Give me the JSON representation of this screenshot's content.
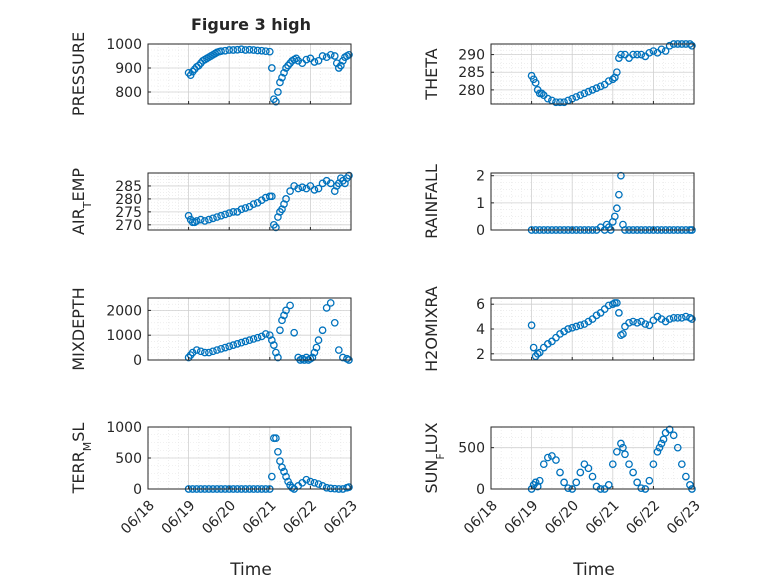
{
  "figure": {
    "title": "Figure 3 high",
    "marker_color": "#0072BD",
    "x_axis": {
      "label": "Time",
      "tick_labels": [
        "06/18",
        "06/19",
        "06/20",
        "06/21",
        "06/22",
        "06/23"
      ],
      "tick_values": [
        0,
        1,
        2,
        3,
        4,
        5
      ],
      "xlim": [
        0,
        5
      ]
    }
  },
  "chart_data": [
    {
      "type": "scatter",
      "ylabel": "PRESSURE",
      "ylim": [
        750,
        1000
      ],
      "yticks": [
        800,
        900,
        1000
      ],
      "grid": true,
      "series": [
        {
          "x": [
            1.0,
            1.05,
            1.1,
            1.15,
            1.2,
            1.25,
            1.3,
            1.35,
            1.4,
            1.45,
            1.5,
            1.55,
            1.6,
            1.65,
            1.7,
            1.75,
            1.8,
            1.9,
            2.0,
            2.1,
            2.2,
            2.3,
            2.4,
            2.5,
            2.6,
            2.7,
            2.8,
            2.9,
            3.0,
            3.05,
            3.1,
            3.15,
            3.2,
            3.25,
            3.3,
            3.35,
            3.4,
            3.45,
            3.5,
            3.55,
            3.6,
            3.65,
            3.7,
            3.8,
            3.9,
            4.0,
            4.1,
            4.2,
            4.3,
            4.4,
            4.5,
            4.6,
            4.65,
            4.7,
            4.75,
            4.8,
            4.85,
            4.9,
            4.95
          ],
          "y": [
            880,
            870,
            885,
            895,
            905,
            910,
            920,
            930,
            935,
            940,
            945,
            950,
            955,
            960,
            965,
            968,
            970,
            972,
            975,
            975,
            976,
            978,
            975,
            976,
            975,
            973,
            972,
            970,
            968,
            900,
            770,
            760,
            800,
            840,
            860,
            880,
            900,
            910,
            920,
            930,
            935,
            940,
            930,
            920,
            935,
            940,
            925,
            930,
            950,
            945,
            955,
            950,
            920,
            900,
            910,
            930,
            945,
            950,
            955
          ]
        }
      ]
    },
    {
      "type": "scatter",
      "ylabel": "THETA",
      "ylim": [
        276,
        293
      ],
      "yticks": [
        280,
        285,
        290
      ],
      "grid": true,
      "series": [
        {
          "x": [
            1.0,
            1.05,
            1.1,
            1.15,
            1.2,
            1.25,
            1.3,
            1.4,
            1.5,
            1.6,
            1.7,
            1.8,
            1.9,
            2.0,
            2.1,
            2.2,
            2.3,
            2.4,
            2.5,
            2.6,
            2.7,
            2.8,
            2.9,
            3.0,
            3.05,
            3.1,
            3.15,
            3.2,
            3.3,
            3.4,
            3.5,
            3.6,
            3.7,
            3.8,
            3.9,
            4.0,
            4.1,
            4.2,
            4.3,
            4.4,
            4.5,
            4.6,
            4.7,
            4.8,
            4.9,
            4.95
          ],
          "y": [
            284,
            283,
            282,
            280,
            279,
            279,
            278.5,
            277.5,
            277,
            276.5,
            276.5,
            276.5,
            277,
            277.5,
            278,
            278.5,
            279,
            279.5,
            280,
            280.5,
            281,
            281.5,
            282.5,
            283,
            283.5,
            285,
            289,
            290,
            290,
            289,
            290,
            290,
            290,
            289.5,
            290.5,
            291,
            290.5,
            291.5,
            291,
            292.5,
            293,
            293,
            293,
            293,
            293,
            292.5
          ]
        }
      ]
    },
    {
      "type": "scatter",
      "ylabel": "AIR_TEMP",
      "ylim": [
        268,
        290
      ],
      "yticks": [
        270,
        275,
        280,
        285
      ],
      "grid": true,
      "series": [
        {
          "x": [
            1.0,
            1.05,
            1.1,
            1.15,
            1.2,
            1.3,
            1.4,
            1.5,
            1.6,
            1.7,
            1.8,
            1.9,
            2.0,
            2.1,
            2.2,
            2.3,
            2.4,
            2.5,
            2.6,
            2.7,
            2.8,
            2.9,
            3.0,
            3.05,
            3.1,
            3.15,
            3.2,
            3.25,
            3.3,
            3.35,
            3.4,
            3.5,
            3.6,
            3.7,
            3.8,
            3.9,
            4.0,
            4.1,
            4.2,
            4.3,
            4.4,
            4.5,
            4.6,
            4.65,
            4.7,
            4.75,
            4.8,
            4.85,
            4.9,
            4.95
          ],
          "y": [
            273.5,
            272,
            271,
            271,
            271.5,
            272,
            271.5,
            272,
            272.5,
            273,
            273.5,
            274,
            274.5,
            275,
            275,
            276,
            276.5,
            277,
            278,
            278.5,
            279.5,
            280.5,
            281,
            281,
            270,
            269,
            273,
            275,
            276,
            278,
            280,
            283,
            285,
            284,
            284.5,
            284,
            285,
            283.5,
            284,
            286,
            287,
            286,
            283,
            285,
            286,
            288,
            287,
            286,
            288,
            289
          ]
        }
      ]
    },
    {
      "type": "scatter",
      "ylabel": "RAINFALL",
      "ylim": [
        0,
        2.1
      ],
      "yticks": [
        0,
        1,
        2
      ],
      "grid": true,
      "series": [
        {
          "x": [
            1.0,
            1.1,
            1.2,
            1.3,
            1.4,
            1.5,
            1.6,
            1.7,
            1.8,
            1.9,
            2.0,
            2.1,
            2.2,
            2.3,
            2.4,
            2.5,
            2.6,
            2.7,
            2.8,
            2.85,
            2.9,
            2.95,
            3.0,
            3.05,
            3.1,
            3.15,
            3.2,
            3.25,
            3.3,
            3.4,
            3.5,
            3.6,
            3.7,
            3.8,
            3.9,
            4.0,
            4.1,
            4.2,
            4.3,
            4.4,
            4.5,
            4.6,
            4.7,
            4.8,
            4.9,
            4.95
          ],
          "y": [
            0,
            0,
            0,
            0,
            0,
            0,
            0,
            0,
            0,
            0,
            0,
            0,
            0,
            0,
            0,
            0,
            0,
            0.1,
            0,
            0.2,
            0.1,
            0,
            0.3,
            0.5,
            0.8,
            1.3,
            2.0,
            0.2,
            0,
            0,
            0,
            0,
            0,
            0,
            0,
            0,
            0,
            0,
            0,
            0,
            0,
            0,
            0,
            0,
            0,
            0
          ]
        }
      ]
    },
    {
      "type": "scatter",
      "ylabel": "MIXDEPTH",
      "ylim": [
        0,
        2500
      ],
      "yticks": [
        0,
        1000,
        2000
      ],
      "grid": true,
      "series": [
        {
          "x": [
            1.0,
            1.05,
            1.1,
            1.2,
            1.3,
            1.4,
            1.5,
            1.6,
            1.7,
            1.8,
            1.9,
            2.0,
            2.1,
            2.2,
            2.3,
            2.4,
            2.5,
            2.6,
            2.7,
            2.8,
            2.9,
            3.0,
            3.05,
            3.1,
            3.15,
            3.2,
            3.25,
            3.3,
            3.35,
            3.4,
            3.5,
            3.6,
            3.7,
            3.75,
            3.8,
            3.85,
            3.9,
            3.95,
            4.0,
            4.05,
            4.1,
            4.15,
            4.2,
            4.3,
            4.4,
            4.5,
            4.6,
            4.7,
            4.8,
            4.9,
            4.95
          ],
          "y": [
            100,
            200,
            300,
            400,
            350,
            300,
            300,
            350,
            400,
            450,
            500,
            550,
            600,
            650,
            700,
            750,
            800,
            850,
            900,
            950,
            1050,
            1000,
            800,
            600,
            300,
            100,
            1200,
            1600,
            1800,
            2000,
            2200,
            1100,
            100,
            0,
            50,
            0,
            100,
            0,
            50,
            100,
            300,
            500,
            800,
            1200,
            2100,
            2300,
            1500,
            400,
            100,
            50,
            0
          ]
        }
      ]
    },
    {
      "type": "scatter",
      "ylabel": "H2OMIXRA",
      "ylim": [
        1.5,
        6.5
      ],
      "yticks": [
        2,
        4,
        6
      ],
      "grid": true,
      "series": [
        {
          "x": [
            1.0,
            1.05,
            1.1,
            1.15,
            1.2,
            1.3,
            1.4,
            1.5,
            1.6,
            1.7,
            1.8,
            1.9,
            2.0,
            2.1,
            2.2,
            2.3,
            2.4,
            2.5,
            2.6,
            2.7,
            2.8,
            2.9,
            3.0,
            3.05,
            3.1,
            3.15,
            3.2,
            3.25,
            3.3,
            3.4,
            3.5,
            3.6,
            3.7,
            3.8,
            3.9,
            4.0,
            4.1,
            4.2,
            4.3,
            4.4,
            4.5,
            4.6,
            4.7,
            4.8,
            4.9,
            4.95
          ],
          "y": [
            4.3,
            2.5,
            1.8,
            2.0,
            2.1,
            2.5,
            2.8,
            3.0,
            3.3,
            3.6,
            3.8,
            4.0,
            4.1,
            4.2,
            4.3,
            4.4,
            4.6,
            4.8,
            5.1,
            5.3,
            5.6,
            5.9,
            6.0,
            6.1,
            6.1,
            5.3,
            3.5,
            3.6,
            4.2,
            4.5,
            4.6,
            4.5,
            4.6,
            4.4,
            4.3,
            4.7,
            5.0,
            4.8,
            4.6,
            4.8,
            4.9,
            4.9,
            4.9,
            5.0,
            4.9,
            4.8
          ]
        }
      ]
    },
    {
      "type": "scatter",
      "ylabel": "TERR_MSL",
      "ylim": [
        0,
        1000
      ],
      "yticks": [
        0,
        500,
        1000
      ],
      "grid": true,
      "series": [
        {
          "x": [
            1.0,
            1.1,
            1.2,
            1.3,
            1.4,
            1.5,
            1.6,
            1.7,
            1.8,
            1.9,
            2.0,
            2.1,
            2.2,
            2.3,
            2.4,
            2.5,
            2.6,
            2.7,
            2.8,
            2.9,
            3.0,
            3.05,
            3.1,
            3.15,
            3.2,
            3.25,
            3.3,
            3.35,
            3.4,
            3.45,
            3.5,
            3.55,
            3.6,
            3.7,
            3.8,
            3.9,
            4.0,
            4.1,
            4.2,
            4.3,
            4.4,
            4.5,
            4.6,
            4.7,
            4.8,
            4.9,
            4.95
          ],
          "y": [
            0,
            0,
            0,
            0,
            0,
            0,
            0,
            0,
            0,
            0,
            0,
            0,
            0,
            0,
            0,
            0,
            0,
            0,
            0,
            0,
            0,
            200,
            820,
            820,
            600,
            450,
            350,
            280,
            200,
            120,
            60,
            20,
            0,
            50,
            100,
            150,
            120,
            100,
            80,
            50,
            20,
            10,
            5,
            0,
            0,
            20,
            30
          ]
        }
      ]
    },
    {
      "type": "scatter",
      "ylabel": "SUN_FLUX",
      "ylim": [
        0,
        750
      ],
      "yticks": [
        0,
        500
      ],
      "grid": true,
      "series": [
        {
          "x": [
            1.0,
            1.05,
            1.1,
            1.15,
            1.2,
            1.3,
            1.4,
            1.5,
            1.6,
            1.7,
            1.8,
            1.9,
            2.0,
            2.1,
            2.2,
            2.3,
            2.4,
            2.5,
            2.6,
            2.7,
            2.8,
            2.9,
            3.0,
            3.1,
            3.2,
            3.25,
            3.3,
            3.4,
            3.5,
            3.6,
            3.7,
            3.8,
            3.9,
            4.0,
            4.1,
            4.15,
            4.2,
            4.25,
            4.3,
            4.4,
            4.5,
            4.6,
            4.7,
            4.8,
            4.9,
            4.95
          ],
          "y": [
            0,
            50,
            80,
            30,
            100,
            300,
            380,
            400,
            350,
            200,
            80,
            10,
            0,
            80,
            200,
            300,
            250,
            150,
            30,
            0,
            0,
            50,
            300,
            450,
            550,
            500,
            420,
            300,
            200,
            80,
            10,
            0,
            100,
            300,
            450,
            500,
            550,
            600,
            680,
            720,
            650,
            500,
            300,
            150,
            50,
            0
          ]
        }
      ]
    }
  ]
}
